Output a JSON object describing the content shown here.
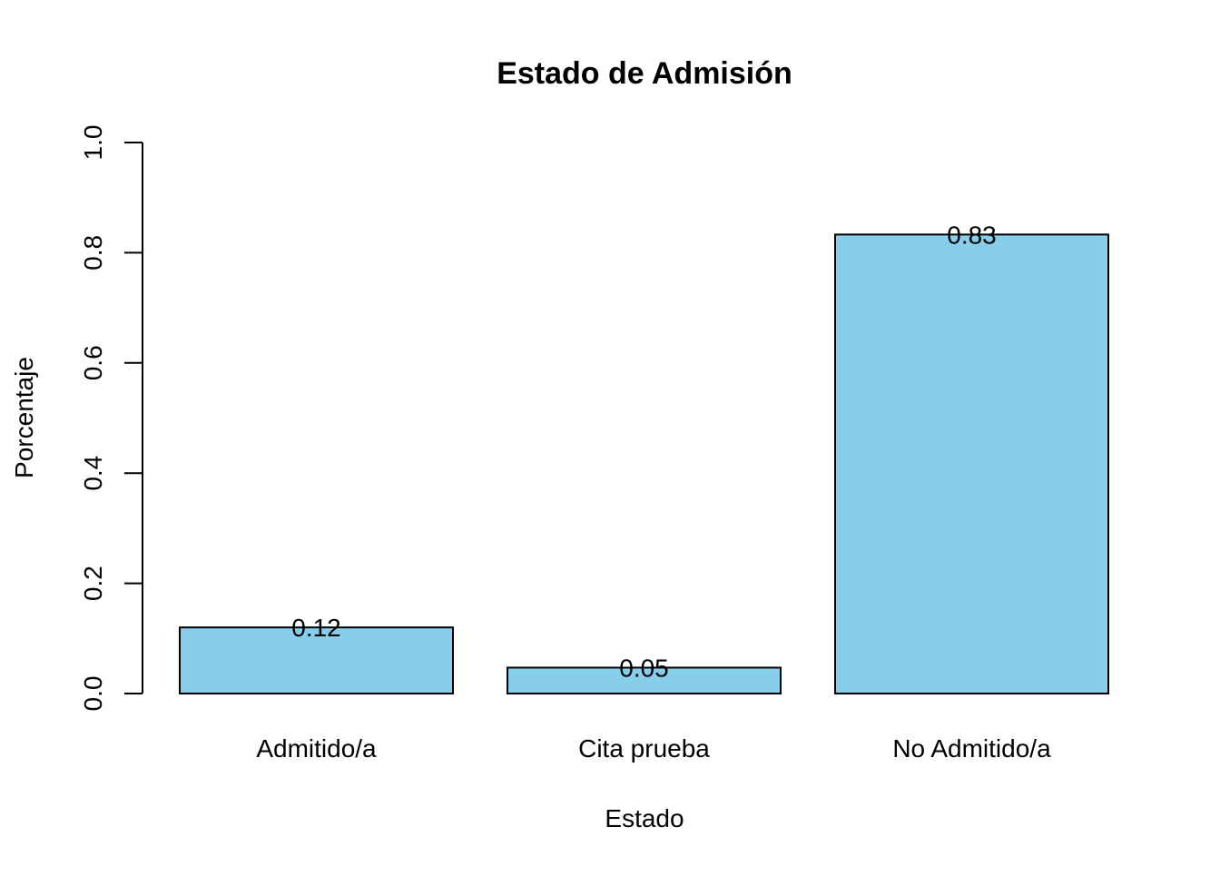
{
  "chart_data": {
    "type": "bar",
    "title": "Estado de Admisión",
    "xlabel": "Estado",
    "ylabel": "Porcentaje",
    "categories": [
      "Admitido/a",
      "Cita prueba",
      "No Admitido/a"
    ],
    "values": [
      0.12,
      0.047,
      0.833
    ],
    "data_labels": [
      "0.12",
      "0.05",
      "0.83"
    ],
    "ylim": [
      0,
      1
    ],
    "yticks": [
      0.0,
      0.2,
      0.4,
      0.6,
      0.8,
      1.0
    ],
    "ytick_labels": [
      "0.0",
      "0.2",
      "0.4",
      "0.6",
      "0.8",
      "1.0"
    ],
    "bar_color": "#87CEEB",
    "bar_border_color": "#000000",
    "grid": false,
    "legend": "none"
  }
}
